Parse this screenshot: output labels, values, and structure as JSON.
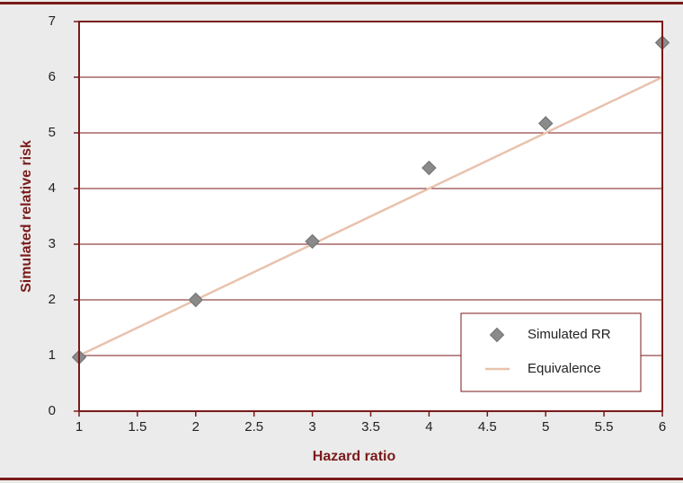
{
  "chart_data": {
    "type": "scatter",
    "x_label": "Hazard ratio",
    "y_label": "Simulated relative risk",
    "xlim": [
      1,
      6
    ],
    "ylim": [
      0,
      7
    ],
    "xticks": [
      1,
      1.5,
      2,
      2.5,
      3,
      3.5,
      4,
      4.5,
      5,
      5.5,
      6
    ],
    "yticks": [
      0,
      1,
      2,
      3,
      4,
      5,
      6,
      7
    ],
    "grid": true,
    "legend": "lower right",
    "series": [
      {
        "name": "Simulated RR",
        "color": "#8a8a8a",
        "type": "scatter",
        "x": [
          1,
          2,
          3,
          4,
          5,
          6
        ],
        "values": [
          0.97,
          2.0,
          3.05,
          4.37,
          5.17,
          6.62
        ]
      },
      {
        "name": "Equivalence",
        "color": "#e9c2ad",
        "type": "line",
        "x": [
          1,
          6
        ],
        "values": [
          1,
          6
        ]
      }
    ]
  }
}
